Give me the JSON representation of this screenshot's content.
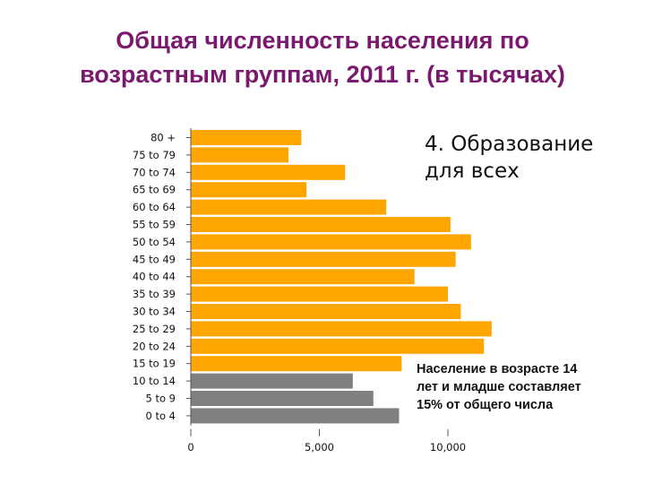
{
  "title": {
    "line1": "Общая численность населения по",
    "line2": "возрастным группам, 2011 г. (в тысячах)"
  },
  "heading": {
    "line1": "4. Образование",
    "line2": "для всех"
  },
  "note": {
    "line1": "Население в возрасте 14",
    "line2": "лет и младше составляет",
    "line3": "15% от общего числа"
  },
  "colors": {
    "title": "#7a1a6e",
    "adult_bar": "#ffa500",
    "child_bar": "#808080"
  },
  "chart_data": {
    "type": "bar",
    "orientation": "horizontal",
    "categories": [
      "80 +",
      "75 to 79",
      "70 to 74",
      "65 to 69",
      "60 to 64",
      "55 to 59",
      "50 to 54",
      "45 to 49",
      "40 to 44",
      "35 to 39",
      "30 to 34",
      "25 to 29",
      "20 to 24",
      "15 to 19",
      "10 to 14",
      "5 to 9",
      "0 to 4"
    ],
    "values": [
      4300,
      3800,
      6000,
      4500,
      7600,
      10100,
      10900,
      10300,
      8700,
      10000,
      10500,
      11700,
      11400,
      8200,
      6300,
      7100,
      8100
    ],
    "bar_colors": [
      "#ffa500",
      "#ffa500",
      "#ffa500",
      "#ffa500",
      "#ffa500",
      "#ffa500",
      "#ffa500",
      "#ffa500",
      "#ffa500",
      "#ffa500",
      "#ffa500",
      "#ffa500",
      "#ffa500",
      "#ffa500",
      "#808080",
      "#808080",
      "#808080"
    ],
    "x_ticks": [
      0,
      5000,
      10000
    ],
    "x_tick_labels": [
      "0",
      "5,000",
      "10,000"
    ],
    "xlim": [
      0,
      12000
    ],
    "grid": false,
    "legend": "none"
  }
}
